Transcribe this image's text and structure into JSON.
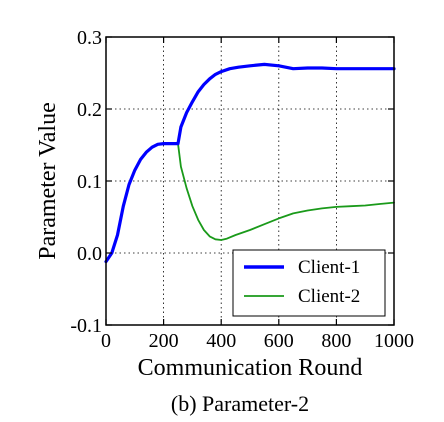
{
  "chart_data": {
    "type": "line",
    "xlabel": "Communication Round",
    "ylabel": "Parameter Value",
    "caption": "(b) Parameter-2",
    "xlim": [
      0,
      1000
    ],
    "ylim": [
      -0.1,
      0.3
    ],
    "x_ticks": [
      0,
      200,
      400,
      600,
      800,
      1000
    ],
    "x_tick_labels": [
      "0",
      "200",
      "400",
      "600",
      "800",
      "1000"
    ],
    "y_ticks": [
      -0.1,
      0.0,
      0.1,
      0.2,
      0.3
    ],
    "y_tick_labels": [
      "-0.1",
      "0.0",
      "0.1",
      "0.2",
      "0.3"
    ],
    "grid": true,
    "legend_position": "bottom-right",
    "series": [
      {
        "name": "Client-1",
        "color": "#0000ff",
        "x": [
          0,
          20,
          40,
          60,
          80,
          100,
          120,
          140,
          160,
          180,
          200,
          220,
          240,
          250,
          260,
          280,
          300,
          320,
          340,
          360,
          380,
          400,
          430,
          460,
          500,
          550,
          600,
          650,
          700,
          750,
          800,
          850,
          900,
          950,
          1000
        ],
        "y": [
          -0.012,
          0.0,
          0.025,
          0.065,
          0.095,
          0.115,
          0.13,
          0.14,
          0.147,
          0.151,
          0.152,
          0.152,
          0.152,
          0.152,
          0.175,
          0.195,
          0.21,
          0.224,
          0.234,
          0.242,
          0.248,
          0.252,
          0.256,
          0.258,
          0.26,
          0.262,
          0.26,
          0.256,
          0.257,
          0.257,
          0.256,
          0.256,
          0.256,
          0.256,
          0.256
        ]
      },
      {
        "name": "Client-2",
        "color": "#1a9a1a",
        "x": [
          0,
          20,
          40,
          60,
          80,
          100,
          120,
          140,
          160,
          180,
          200,
          220,
          240,
          250,
          260,
          280,
          300,
          320,
          340,
          360,
          380,
          400,
          420,
          450,
          500,
          550,
          600,
          650,
          700,
          750,
          800,
          850,
          900,
          950,
          1000
        ],
        "y": [
          -0.012,
          0.0,
          0.025,
          0.065,
          0.095,
          0.115,
          0.13,
          0.14,
          0.147,
          0.151,
          0.152,
          0.152,
          0.152,
          0.152,
          0.12,
          0.09,
          0.065,
          0.046,
          0.032,
          0.023,
          0.019,
          0.018,
          0.02,
          0.025,
          0.032,
          0.04,
          0.048,
          0.055,
          0.059,
          0.062,
          0.064,
          0.065,
          0.066,
          0.068,
          0.07
        ]
      }
    ]
  }
}
